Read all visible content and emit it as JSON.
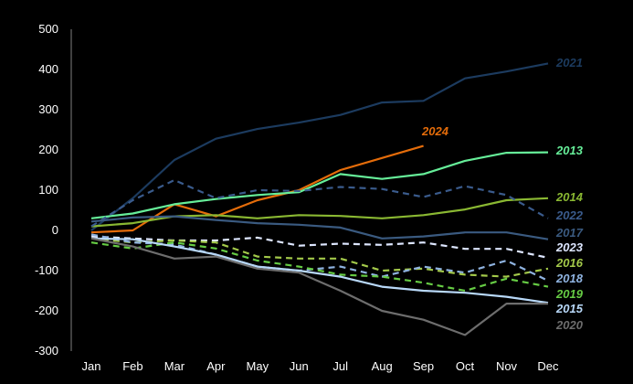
{
  "chart_data": {
    "type": "line",
    "title": "",
    "xlabel": "",
    "ylabel": "",
    "ylim": [
      -300,
      500
    ],
    "yticks": [
      500,
      400,
      300,
      200,
      100,
      0,
      -100,
      -200,
      -300
    ],
    "categories": [
      "Jan",
      "Feb",
      "Mar",
      "Apr",
      "May",
      "Jun",
      "Jul",
      "Aug",
      "Sep",
      "Oct",
      "Nov",
      "Dec"
    ],
    "grid": false,
    "legend": "inline-right",
    "series": [
      {
        "name": "2021",
        "color": "#1c3b5f",
        "dash": false,
        "values": [
          0,
          80,
          175,
          228,
          252,
          268,
          287,
          318,
          322,
          378,
          395,
          415
        ]
      },
      {
        "name": "2024",
        "color": "#e46c0a",
        "dash": false,
        "values": [
          -5,
          0,
          65,
          35,
          75,
          100,
          150,
          180,
          210,
          null,
          null,
          null
        ]
      },
      {
        "name": "2013",
        "color": "#66ee99",
        "dash": false,
        "values": [
          30,
          42,
          65,
          78,
          88,
          95,
          140,
          128,
          140,
          173,
          193,
          194
        ]
      },
      {
        "name": "2014",
        "color": "#8ab832",
        "dash": false,
        "values": [
          10,
          18,
          35,
          38,
          30,
          38,
          36,
          30,
          38,
          52,
          75,
          80
        ]
      },
      {
        "name": "2022",
        "color": "#3a5b8c",
        "dash": true,
        "values": [
          10,
          75,
          125,
          80,
          100,
          98,
          108,
          103,
          83,
          110,
          88,
          30
        ]
      },
      {
        "name": "2017",
        "color": "#3a5a80",
        "dash": false,
        "values": [
          22,
          32,
          35,
          26,
          18,
          14,
          7,
          -20,
          -15,
          -5,
          -5,
          -22
        ]
      },
      {
        "name": "2023",
        "color": "#dde6ff",
        "dash": true,
        "values": [
          -15,
          -20,
          -25,
          -25,
          -18,
          -38,
          -33,
          -36,
          -30,
          -46,
          -46,
          -68
        ]
      },
      {
        "name": "2016",
        "color": "#a3c94a",
        "dash": true,
        "values": [
          -20,
          -30,
          -25,
          -30,
          -65,
          -70,
          -70,
          -100,
          -95,
          -110,
          -115,
          -95
        ]
      },
      {
        "name": "2018",
        "color": "#8fb3e0",
        "dash": true,
        "values": [
          -10,
          -30,
          -35,
          -60,
          -90,
          -100,
          -90,
          -115,
          -90,
          -105,
          -75,
          -125
        ]
      },
      {
        "name": "2019",
        "color": "#66cc44",
        "dash": true,
        "values": [
          -30,
          -45,
          -30,
          -45,
          -75,
          -90,
          -110,
          -115,
          -130,
          -150,
          -120,
          -140
        ]
      },
      {
        "name": "2015",
        "color": "#b8d8f8",
        "dash": false,
        "values": [
          -20,
          -22,
          -40,
          -60,
          -90,
          -100,
          -115,
          -140,
          -150,
          -155,
          -165,
          -180
        ]
      },
      {
        "name": "2020",
        "color": "#6d6d6d",
        "dash": false,
        "values": [
          -20,
          -40,
          -70,
          -65,
          -95,
          -105,
          -150,
          -200,
          -222,
          -260,
          -182,
          -182
        ]
      }
    ]
  }
}
